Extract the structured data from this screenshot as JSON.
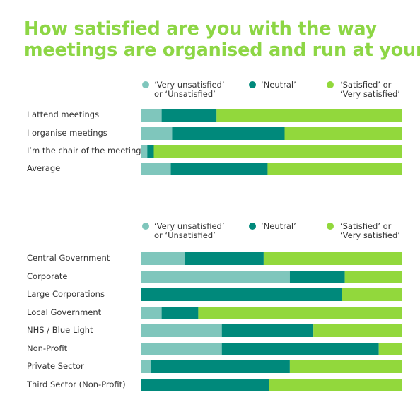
{
  "title_lines": [
    "How satisfied are you with the way",
    "meetings are organised and run at your"
  ],
  "colors": {
    "unsatisfied": "#7fc6bc",
    "neutral": "#00897b",
    "satisfied": "#92d83c",
    "title": "#8dd645"
  },
  "chart_data": [
    {
      "type": "bar",
      "orientation": "horizontal",
      "stacked": "100%",
      "categories": [
        "I attend meetings",
        "I organise meetings",
        "I’m the chair of the meeting",
        "Average"
      ],
      "series": [
        {
          "name": "‘Very unsatisfied’ or ‘Unsatisfied’",
          "values": [
            8,
            12,
            2.5,
            11.5
          ]
        },
        {
          "name": "‘Neutral’",
          "values": [
            21,
            43,
            2.5,
            37
          ]
        },
        {
          "name": "‘Satisfied’ or ‘Very satisfied’",
          "values": [
            71,
            45,
            95,
            51.5
          ]
        }
      ],
      "legend": [
        "‘Very unsatisfied’",
        "or ‘Unsatisfied’",
        "‘Neutral’",
        "‘Satisfied’ or",
        "‘Very satisfied’"
      ],
      "xlim": [
        0,
        100
      ],
      "legend_position": "top"
    },
    {
      "type": "bar",
      "orientation": "horizontal",
      "stacked": "100%",
      "categories": [
        "Central Government",
        "Corporate",
        "Large Corporations",
        "Local Government",
        "NHS / Blue Light",
        "Non-Profit",
        "Private Sector",
        "Third Sector (Non-Profit)"
      ],
      "series": [
        {
          "name": "‘Very unsatisfied’ or ‘Unsatisfied’",
          "values": [
            17,
            57,
            0,
            8,
            31,
            31,
            4,
            0
          ]
        },
        {
          "name": "‘Neutral’",
          "values": [
            30,
            21,
            77,
            14,
            35,
            60,
            53,
            49
          ]
        },
        {
          "name": "‘Satisfied’ or ‘Very satisfied’",
          "values": [
            53,
            22,
            23,
            78,
            34,
            9,
            43,
            51
          ]
        }
      ],
      "legend": [
        "‘Very unsatisfied’",
        "or ‘Unsatisfied’",
        "‘Neutral’",
        "‘Satisfied’ or",
        "‘Very satisfied’"
      ],
      "xlim": [
        0,
        100
      ],
      "legend_position": "top"
    }
  ]
}
